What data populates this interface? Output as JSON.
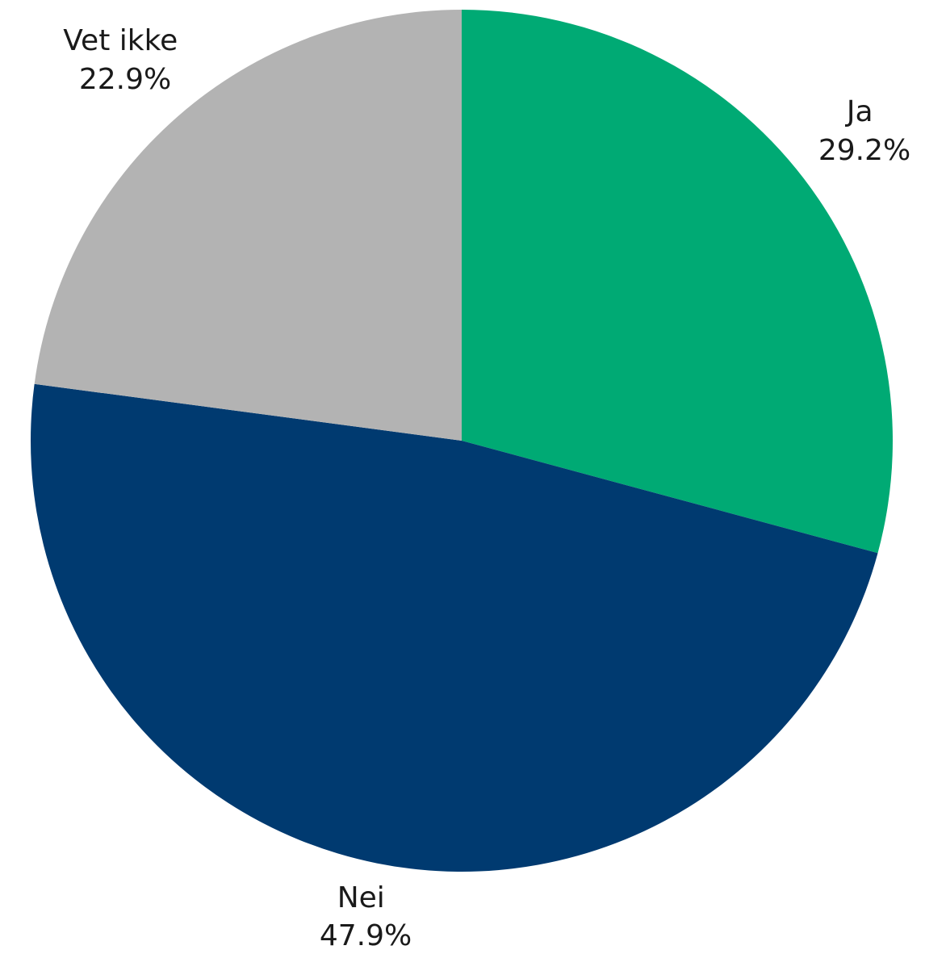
{
  "chart_data": {
    "type": "pie",
    "slices": [
      {
        "label": "Ja",
        "value": 29.2,
        "value_label": "29.2%",
        "color": "#00AA74"
      },
      {
        "label": "Nei",
        "value": 47.9,
        "value_label": "47.9%",
        "color": "#003A70"
      },
      {
        "label": "Vet ikke",
        "value": 22.9,
        "value_label": "22.9%",
        "color": "#B3B3B3"
      }
    ],
    "start_angle": "12 o'clock",
    "direction": "clockwise",
    "legend": "none"
  }
}
